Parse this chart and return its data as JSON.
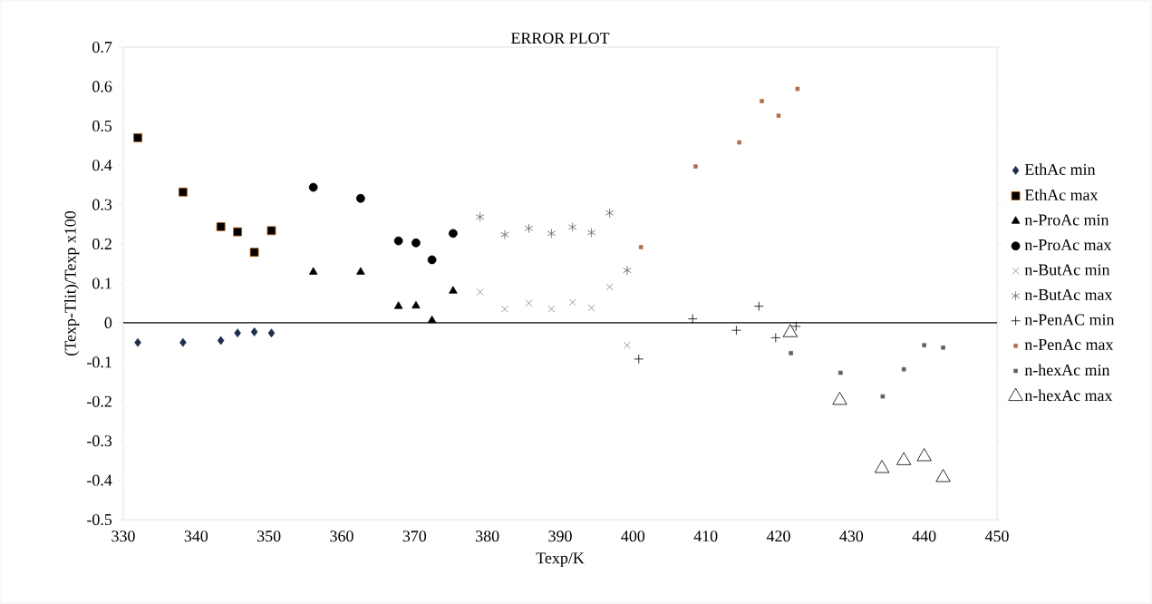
{
  "chart_data": {
    "type": "scatter",
    "title": "ERROR PLOT",
    "xlabel": "Texp/K",
    "ylabel": "(Texp-Tlit)/Texp  x100",
    "xlim": [
      330,
      450
    ],
    "ylim": [
      -0.5,
      0.7
    ],
    "xticks": [
      330,
      340,
      350,
      360,
      370,
      380,
      390,
      400,
      410,
      420,
      430,
      440,
      450
    ],
    "yticks": [
      -0.5,
      -0.4,
      -0.3,
      -0.2,
      -0.1,
      0,
      0.1,
      0.2,
      0.3,
      0.4,
      0.5,
      0.6,
      0.7
    ],
    "legend": "right",
    "ref_lines": [
      {
        "axis": "y",
        "value": 0,
        "color": "#000000"
      }
    ],
    "series": [
      {
        "name": "EthAc min",
        "color": "#1f2d4d",
        "marker": "diamond",
        "x": [
          332.0,
          338.2,
          343.4,
          345.7,
          348.0,
          350.35
        ],
        "values": [
          -0.05,
          -0.05,
          -0.045,
          -0.026,
          -0.023,
          -0.026
        ]
      },
      {
        "name": "EthAc max",
        "color": "#000000",
        "marker": "square",
        "x": [
          332.0,
          338.2,
          343.4,
          345.7,
          348.0,
          350.35
        ],
        "values": [
          0.47,
          0.332,
          0.244,
          0.231,
          0.179,
          0.234
        ]
      },
      {
        "name": "n-ProAc min",
        "color": "#000000",
        "marker": "triangle",
        "x": [
          356.1,
          362.6,
          367.8,
          370.2,
          372.4,
          375.3
        ],
        "values": [
          0.129,
          0.129,
          0.042,
          0.043,
          0.006,
          0.081
        ]
      },
      {
        "name": "n-ProAc max",
        "color": "#000000",
        "marker": "circle",
        "x": [
          356.1,
          362.6,
          367.8,
          370.2,
          372.4,
          375.3
        ],
        "values": [
          0.344,
          0.316,
          0.208,
          0.203,
          0.16,
          0.227
        ]
      },
      {
        "name": "n-ButAc min",
        "color": "#808080",
        "marker": "x",
        "x": [
          379.0,
          382.4,
          385.7,
          388.8,
          391.7,
          394.3,
          396.8,
          399.2
        ],
        "values": [
          0.078,
          0.035,
          0.05,
          0.035,
          0.052,
          0.038,
          0.091,
          -0.057
        ]
      },
      {
        "name": "n-ButAc max",
        "color": "#606060",
        "marker": "cross",
        "x": [
          379.0,
          382.4,
          385.7,
          388.8,
          391.7,
          394.3,
          396.8,
          399.2
        ],
        "values": [
          0.269,
          0.224,
          0.24,
          0.227,
          0.243,
          0.229,
          0.279,
          0.133
        ]
      },
      {
        "name": "n-PenAC min",
        "color": "#000000",
        "marker": "cross",
        "x": [
          400.8,
          408.2,
          414.2,
          417.3,
          419.6,
          422.4
        ],
        "values": [
          -0.092,
          0.01,
          -0.019,
          0.042,
          -0.038,
          -0.009
        ]
      },
      {
        "name": "n-PenAc max",
        "color": "#b0704a",
        "x": [
          401.1,
          408.6,
          414.6,
          417.7,
          420.0,
          422.6
        ],
        "values": [
          0.192,
          0.397,
          0.458,
          0.563,
          0.526,
          0.594
        ]
      },
      {
        "name": "n-hexAc min",
        "color": "#606060",
        "x": [
          421.7,
          428.5,
          434.3,
          437.2,
          440.0,
          442.6
        ],
        "values": [
          -0.077,
          -0.127,
          -0.187,
          -0.118,
          -0.057,
          -0.063
        ]
      },
      {
        "name": "n-hexAc max",
        "color": "#000000",
        "marker": "triangle",
        "x": [
          421.6,
          428.4,
          434.2,
          437.2,
          440.0,
          442.6
        ],
        "values": [
          -0.025,
          -0.197,
          -0.37,
          -0.35,
          -0.34,
          -0.393
        ]
      }
    ]
  }
}
